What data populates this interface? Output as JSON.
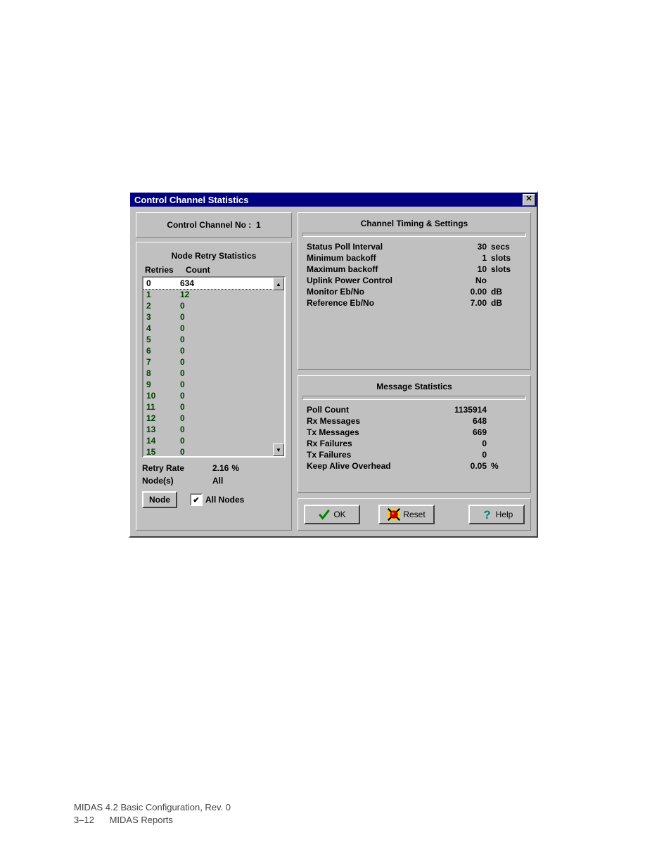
{
  "dialog": {
    "title": "Control Channel Statistics",
    "control_channel": {
      "label": "Control Channel No :",
      "value": "1"
    },
    "retry_panel_title": "Node Retry Statistics",
    "retry_header": {
      "col1": "Retries",
      "col2": "Count"
    },
    "retry_rows": [
      {
        "r": "0",
        "c": "634"
      },
      {
        "r": "1",
        "c": "12"
      },
      {
        "r": "2",
        "c": "0"
      },
      {
        "r": "3",
        "c": "0"
      },
      {
        "r": "4",
        "c": "0"
      },
      {
        "r": "5",
        "c": "0"
      },
      {
        "r": "6",
        "c": "0"
      },
      {
        "r": "7",
        "c": "0"
      },
      {
        "r": "8",
        "c": "0"
      },
      {
        "r": "9",
        "c": "0"
      },
      {
        "r": "10",
        "c": "0"
      },
      {
        "r": "11",
        "c": "0"
      },
      {
        "r": "12",
        "c": "0"
      },
      {
        "r": "13",
        "c": "0"
      },
      {
        "r": "14",
        "c": "0"
      },
      {
        "r": "15",
        "c": "0"
      }
    ],
    "retry_rate": {
      "label": "Retry Rate",
      "value": "2.16",
      "unit": "%"
    },
    "nodes": {
      "label": "Node(s)",
      "value": "All"
    },
    "node_button": "Node",
    "all_nodes_checkbox": {
      "label": "All Nodes",
      "checked": true
    },
    "timing_panel_title": "Channel Timing & Settings",
    "timing": [
      {
        "label": "Status Poll Interval",
        "value": "30",
        "unit": "secs"
      },
      {
        "label": "Minimum backoff",
        "value": "1",
        "unit": "slots"
      },
      {
        "label": "Maximum backoff",
        "value": "10",
        "unit": "slots"
      },
      {
        "label": "Uplink Power Control",
        "value": "No",
        "unit": ""
      },
      {
        "label": "Monitor Eb/No",
        "value": "0.00",
        "unit": "dB"
      },
      {
        "label": "Reference Eb/No",
        "value": "7.00",
        "unit": "dB"
      }
    ],
    "msg_panel_title": "Message Statistics",
    "msg": [
      {
        "label": "Poll Count",
        "value": "1135914",
        "unit": ""
      },
      {
        "label": "Rx Messages",
        "value": "648",
        "unit": ""
      },
      {
        "label": "Tx Messages",
        "value": "669",
        "unit": ""
      },
      {
        "label": "Rx Failures",
        "value": "0",
        "unit": ""
      },
      {
        "label": "Tx Failures",
        "value": "0",
        "unit": ""
      },
      {
        "label": "Keep Alive Overhead",
        "value": "0.05",
        "unit": "%"
      }
    ],
    "buttons": {
      "ok": "OK",
      "reset": "Reset",
      "help": "Help"
    }
  },
  "footer": {
    "line1": "MIDAS 4.2 Basic Configuration, Rev. 0",
    "line2a": "3–12",
    "line2b": "MIDAS Reports"
  }
}
